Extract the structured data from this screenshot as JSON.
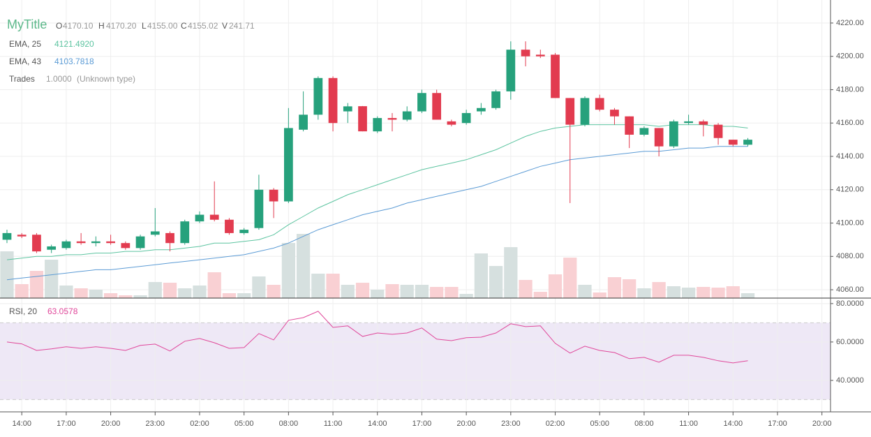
{
  "chart_data": {
    "type": "candlestick",
    "title": "MyTitle",
    "ohlcv_legend": [
      {
        "label": "O",
        "value": "4170.10"
      },
      {
        "label": "H",
        "value": "4170.20"
      },
      {
        "label": "L",
        "value": "4155.00"
      },
      {
        "label": "C",
        "value": "4155.02"
      },
      {
        "label": "V",
        "value": "241.71"
      }
    ],
    "open": [
      4090,
      4093,
      4093,
      4084,
      4085,
      4089,
      4088,
      4089,
      4088,
      4085,
      4093,
      4094,
      4088,
      4101,
      4105,
      4102,
      4094,
      4097,
      4120,
      4113,
      4156,
      4165,
      4187,
      4167,
      4170.1,
      4155,
      4163,
      4162,
      4167,
      4178,
      4161,
      4160,
      4167,
      4169,
      4179,
      4204,
      4201,
      4201,
      4175,
      4159,
      4175,
      4168,
      4164,
      4153,
      4157,
      4146,
      4160,
      4161,
      4159,
      4150,
      4147
    ],
    "high": [
      4096,
      4094,
      4094,
      4087,
      4090,
      4094,
      4092,
      4093,
      4089,
      4093,
      4109,
      4095,
      4102,
      4107,
      4125,
      4103,
      4097,
      4129,
      4121,
      4169,
      4179,
      4188,
      4188,
      4172,
      4170.2,
      4164,
      4166,
      4170,
      4180,
      4180,
      4162,
      4168,
      4172,
      4180,
      4209,
      4209,
      4204,
      4202,
      4175,
      4176,
      4177,
      4169,
      4164,
      4158,
      4157,
      4162,
      4165,
      4162,
      4160,
      4150,
      4151
    ],
    "low": [
      4088,
      4091,
      4082,
      4082,
      4084,
      4087,
      4086,
      4087,
      4084,
      4084,
      4092,
      4083,
      4087,
      4100,
      4101,
      4093,
      4093,
      4096,
      4103,
      4112,
      4155,
      4162,
      4155,
      4160,
      4155,
      4154,
      4155,
      4161,
      4166,
      4162,
      4158,
      4159,
      4165,
      4168,
      4174,
      4194,
      4199,
      4175,
      4112,
      4158,
      4167,
      4159,
      4145,
      4152,
      4140,
      4145,
      4159,
      4152,
      4147,
      4146,
      4146
    ],
    "close": [
      4094,
      4092,
      4083,
      4086,
      4089,
      4088,
      4089,
      4088,
      4085,
      4092,
      4095,
      4088,
      4101,
      4105,
      4102,
      4094,
      4096,
      4120,
      4113,
      4157,
      4165,
      4187,
      4160,
      4170,
      4155.02,
      4163,
      4162,
      4167,
      4178,
      4162,
      4159,
      4166,
      4169,
      4179,
      4204,
      4200,
      4200,
      4175,
      4159,
      4175,
      4168,
      4164,
      4153,
      4157,
      4146,
      4161,
      4161,
      4159,
      4151,
      4147,
      4150
    ],
    "volume": [
      737,
      220,
      429,
      605,
      198,
      154,
      132,
      77,
      44,
      44,
      253,
      242,
      154,
      198,
      407,
      77,
      77,
      341,
      209,
      869,
      1012,
      385,
      385,
      209,
      241.71,
      132,
      220,
      209,
      209,
      176,
      176,
      66,
      704,
      506,
      803,
      286,
      99,
      374,
      638,
      209,
      88,
      330,
      297,
      154,
      253,
      187,
      165,
      176,
      165,
      187,
      77
    ],
    "up_color": "#26a17c",
    "down_color": "#e23b4f",
    "volume_up_color": "#d6e0df",
    "volume_down_color": "#f9d0d3",
    "volume_ylim": [
      0,
      4700
    ],
    "series": [
      {
        "name": "EMA, 25",
        "legend_value": "4121.4920",
        "color": "#5cc4a0",
        "values": [
          4078,
          4079,
          4080,
          4080,
          4081,
          4081,
          4082,
          4082,
          4083,
          4083,
          4084,
          4084,
          4085,
          4086,
          4088,
          4088,
          4089,
          4090,
          4093,
          4099,
          4104,
          4109,
          4113,
          4117,
          4120,
          4123,
          4126,
          4129,
          4132,
          4134,
          4136,
          4138,
          4141,
          4144,
          4148,
          4152,
          4155,
          4157,
          4158,
          4159,
          4159,
          4159,
          4159,
          4159,
          4158,
          4159,
          4159,
          4159,
          4158,
          4158,
          4157
        ]
      },
      {
        "name": "EMA, 43",
        "legend_value": "4103.7818",
        "color": "#5b9bd5",
        "values": [
          4066,
          4067,
          4068,
          4069,
          4070,
          4071,
          4072,
          4072,
          4073,
          4074,
          4075,
          4076,
          4077,
          4078,
          4079,
          4080,
          4081,
          4083,
          4085,
          4088,
          4092,
          4096,
          4099,
          4102,
          4105,
          4107,
          4109,
          4112,
          4114,
          4116,
          4118,
          4120,
          4122,
          4125,
          4128,
          4131,
          4134,
          4136,
          4138,
          4139,
          4140,
          4141,
          4142,
          4143,
          4143,
          4144,
          4145,
          4145,
          4146,
          4146,
          4146
        ]
      }
    ],
    "trades": {
      "name": "Trades",
      "value": "1.0000",
      "kind": "(Unknown type)"
    },
    "ylim": [
      4055,
      4233.8
    ],
    "yticks": [
      {
        "value": 4060,
        "label": "4060.00"
      },
      {
        "value": 4080,
        "label": "4080.00"
      },
      {
        "value": 4100,
        "label": "4100.00"
      },
      {
        "value": 4120,
        "label": "4120.00"
      },
      {
        "value": 4140,
        "label": "4140.00"
      },
      {
        "value": 4160,
        "label": "4160.00"
      },
      {
        "value": 4180,
        "label": "4180.00"
      },
      {
        "value": 4200,
        "label": "4200.00"
      },
      {
        "value": 4220,
        "label": "4220.00"
      }
    ],
    "xlim": [
      -0.47,
      55.58
    ],
    "xticks": [
      {
        "value": 1,
        "label": "14:00"
      },
      {
        "value": 4,
        "label": "17:00"
      },
      {
        "value": 7,
        "label": "20:00"
      },
      {
        "value": 10,
        "label": "23:00"
      },
      {
        "value": 13,
        "label": "02:00"
      },
      {
        "value": 16,
        "label": "05:00"
      },
      {
        "value": 19,
        "label": "08:00"
      },
      {
        "value": 22,
        "label": "11:00"
      },
      {
        "value": 25,
        "label": "14:00"
      },
      {
        "value": 28,
        "label": "17:00"
      },
      {
        "value": 31,
        "label": "20:00"
      },
      {
        "value": 34,
        "label": "23:00"
      },
      {
        "value": 37,
        "label": "02:00"
      },
      {
        "value": 40,
        "label": "05:00"
      },
      {
        "value": 43,
        "label": "08:00"
      },
      {
        "value": 46,
        "label": "11:00"
      },
      {
        "value": 49,
        "label": "14:00"
      },
      {
        "value": 52,
        "label": "17:00"
      },
      {
        "value": 55,
        "label": "20:00"
      }
    ],
    "grid": true,
    "rsi": {
      "type": "line",
      "name": "RSI, 20",
      "legend_value": "63.0578",
      "color": "#e0479a",
      "values": [
        60.0,
        59.0,
        55.6,
        56.4,
        57.5,
        56.7,
        57.5,
        56.7,
        55.6,
        58.2,
        58.9,
        55.3,
        60.4,
        61.8,
        59.6,
        56.7,
        57.1,
        64.4,
        61.1,
        71.3,
        72.7,
        76.0,
        67.6,
        68.4,
        62.9,
        64.7,
        64.0,
        64.7,
        67.3,
        61.5,
        60.7,
        62.2,
        62.5,
        64.7,
        69.5,
        68.0,
        68.4,
        59.3,
        54.2,
        57.8,
        55.6,
        54.5,
        51.3,
        52.0,
        49.5,
        53.1,
        53.1,
        52.0,
        50.2,
        49.1,
        50.2
      ],
      "ylim": [
        23.6,
        82.5
      ],
      "yticks": [
        {
          "value": 80,
          "label": "80.0000"
        },
        {
          "value": 60,
          "label": "60.0000"
        },
        {
          "value": 40,
          "label": "40.0000"
        }
      ],
      "band": [
        30,
        70
      ],
      "band_color": "#eee8f6"
    }
  }
}
